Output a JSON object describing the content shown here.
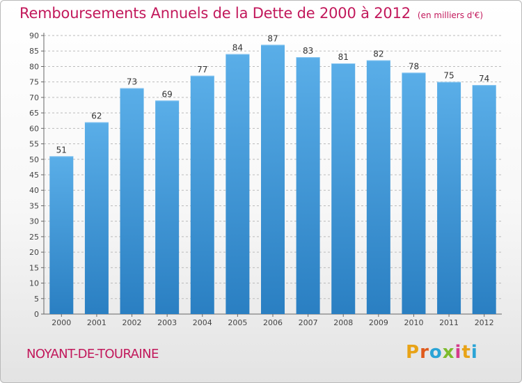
{
  "header": {
    "title": "Remboursements Annuels de la Dette de 2000 à 2012",
    "subtitle": "(en milliers d'€)"
  },
  "footer": {
    "commune": "NOYANT-DE-TOURAINE",
    "logo_text": "Proxiti",
    "logo_colors": [
      "#e8a317",
      "#e05a1c",
      "#2aa4d6",
      "#7dbb2c",
      "#d63a8c",
      "#e8a317",
      "#2aa4d6"
    ]
  },
  "colors": {
    "accent": "#c2185b",
    "bar_top": "#5aaee8",
    "bar_bottom": "#2a7fc2",
    "grid": "#bbbbbb"
  },
  "chart_data": {
    "type": "bar",
    "categories": [
      "2000",
      "2001",
      "2002",
      "2003",
      "2004",
      "2005",
      "2006",
      "2007",
      "2008",
      "2009",
      "2010",
      "2011",
      "2012"
    ],
    "values": [
      51,
      62,
      73,
      69,
      77,
      84,
      87,
      83,
      81,
      82,
      78,
      75,
      74
    ],
    "ylim": [
      0,
      90
    ],
    "yticks": [
      0,
      5,
      10,
      15,
      20,
      25,
      30,
      35,
      40,
      45,
      50,
      55,
      60,
      65,
      70,
      75,
      80,
      85,
      90
    ],
    "grid": true,
    "title": "Remboursements Annuels de la Dette de 2000 à 2012",
    "subtitle": "(en milliers d'€)"
  }
}
